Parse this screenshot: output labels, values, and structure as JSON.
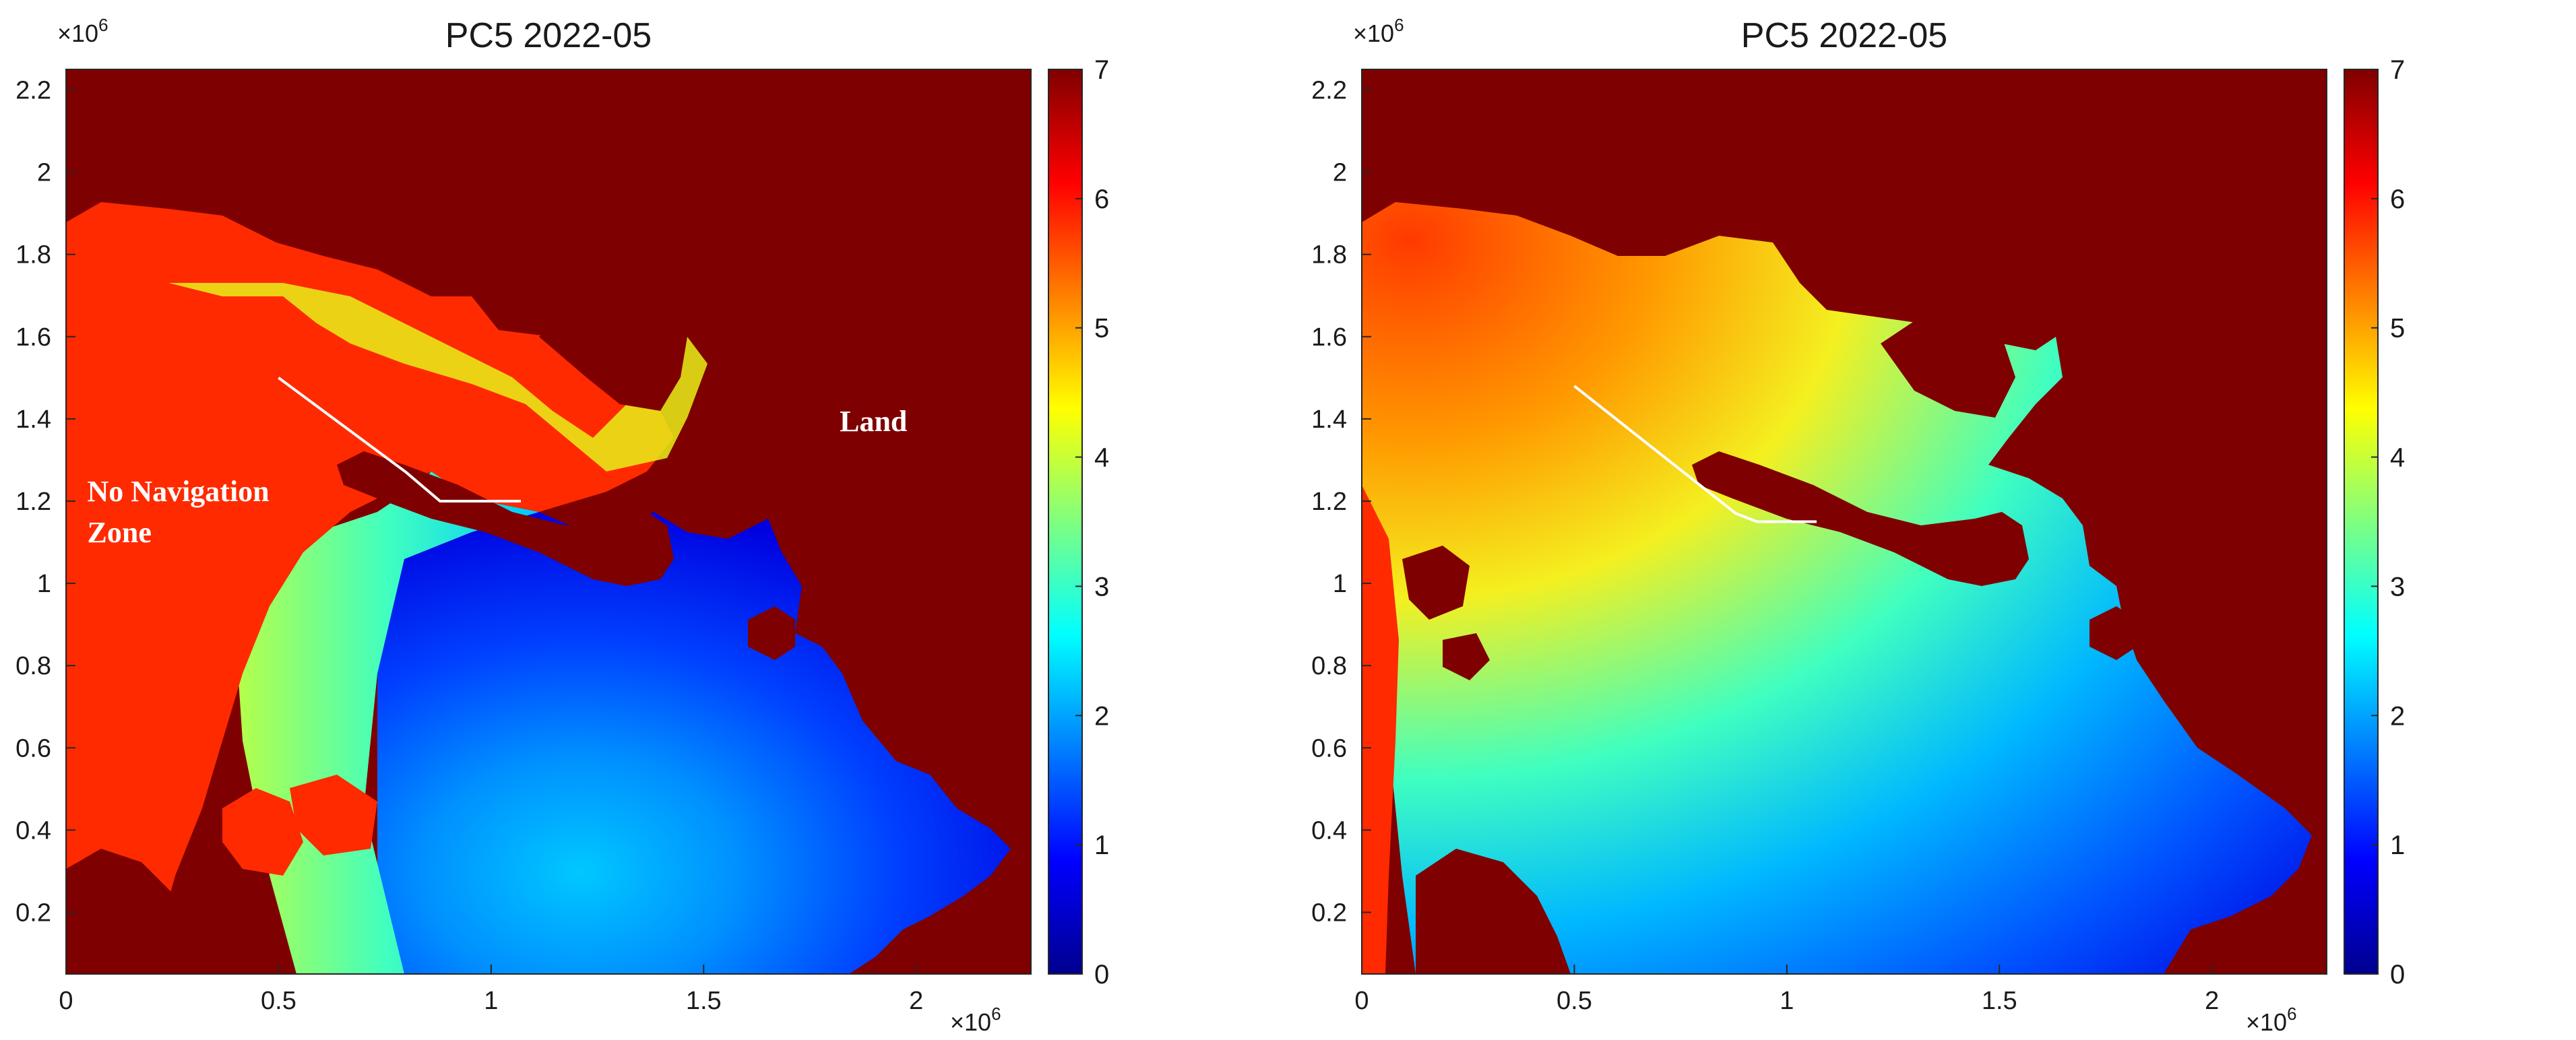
{
  "chart_data": [
    {
      "type": "heatmap",
      "title": "PC5 2022-05",
      "xlabel": "",
      "ylabel": "",
      "x_multiplier": "×10^6",
      "y_multiplier": "×10^6",
      "xlim": [
        0,
        2.27
      ],
      "ylim": [
        0.05,
        2.25
      ],
      "xticks": [
        "0",
        "0.5",
        "1",
        "1.5",
        "2"
      ],
      "yticks": [
        "0.2",
        "0.4",
        "0.6",
        "0.8",
        "1",
        "1.2",
        "1.4",
        "1.6",
        "1.8",
        "2",
        "2.2"
      ],
      "colorbar": {
        "colormap": "jet",
        "range": [
          0,
          7
        ],
        "ticks": [
          "0",
          "1",
          "2",
          "3",
          "4",
          "5",
          "6",
          "7"
        ]
      },
      "route": [
        [
          0.5,
          1.5
        ],
        [
          0.8,
          1.27
        ],
        [
          0.88,
          1.2
        ],
        [
          1.07,
          1.2
        ]
      ],
      "annotations": [
        {
          "text": "No Navigation",
          "x": 0.05,
          "y": 1.2,
          "color": "#ffffff"
        },
        {
          "text": "Zone",
          "x": 0.05,
          "y": 1.1,
          "color": "#ffffff"
        },
        {
          "text": "Land",
          "x": 1.82,
          "y": 1.37,
          "color": "#ffffff"
        }
      ]
    },
    {
      "type": "heatmap",
      "title": "PC5 2022-05",
      "xlabel": "",
      "ylabel": "",
      "x_multiplier": "×10^6",
      "y_multiplier": "×10^6",
      "xlim": [
        0,
        2.27
      ],
      "ylim": [
        0.05,
        2.25
      ],
      "xticks": [
        "0",
        "0.5",
        "1",
        "1.5",
        "2"
      ],
      "yticks": [
        "0.2",
        "0.4",
        "0.6",
        "0.8",
        "1",
        "1.2",
        "1.4",
        "1.6",
        "1.8",
        "2",
        "2.2"
      ],
      "colorbar": {
        "colormap": "jet",
        "range": [
          0,
          7
        ],
        "ticks": [
          "0",
          "1",
          "2",
          "3",
          "4",
          "5",
          "6",
          "7"
        ]
      },
      "route": [
        [
          0.5,
          1.48
        ],
        [
          0.88,
          1.17
        ],
        [
          0.93,
          1.15
        ],
        [
          1.07,
          1.15
        ]
      ],
      "annotations": []
    }
  ],
  "colors": {
    "land": "#7f0000",
    "no_navigation_zone": "#ff2a00",
    "route": "#ffffff"
  }
}
